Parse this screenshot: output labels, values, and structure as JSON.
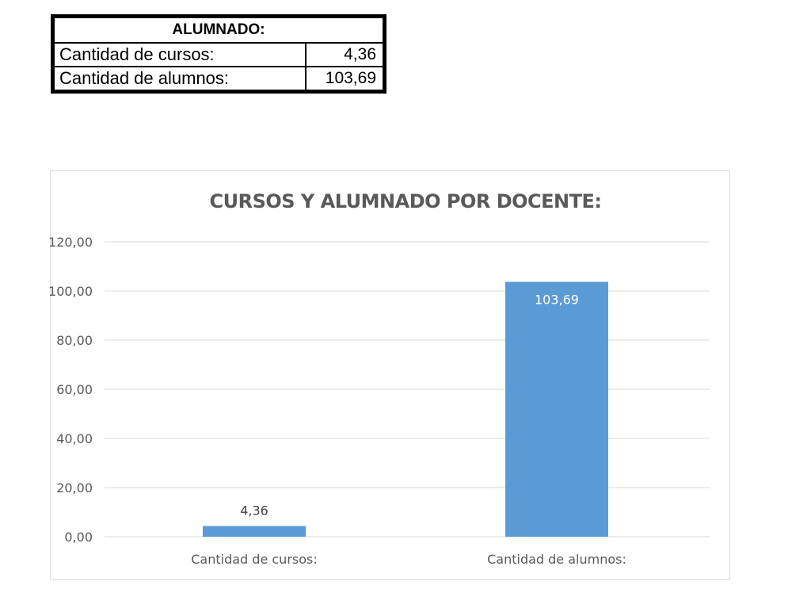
{
  "table": {
    "header": "ALUMNADO:",
    "rows": [
      {
        "label": "Cantidad de cursos:",
        "value": "4,36"
      },
      {
        "label": "Cantidad de alumnos:",
        "value": "103,69"
      }
    ]
  },
  "chart_data": {
    "type": "bar",
    "title": "CURSOS Y ALUMNADO POR DOCENTE:",
    "categories": [
      "Cantidad de cursos:",
      "Cantidad de alumnos:"
    ],
    "values": [
      4.36,
      103.69
    ],
    "data_labels": [
      "4,36",
      "103,69"
    ],
    "ylim": [
      0,
      120
    ],
    "yticks": [
      "0,00",
      "20,00",
      "40,00",
      "60,00",
      "80,00",
      "100,00",
      "120,00"
    ],
    "grid": true,
    "bar_color": "#5b9bd5",
    "xlabel": "",
    "ylabel": ""
  }
}
